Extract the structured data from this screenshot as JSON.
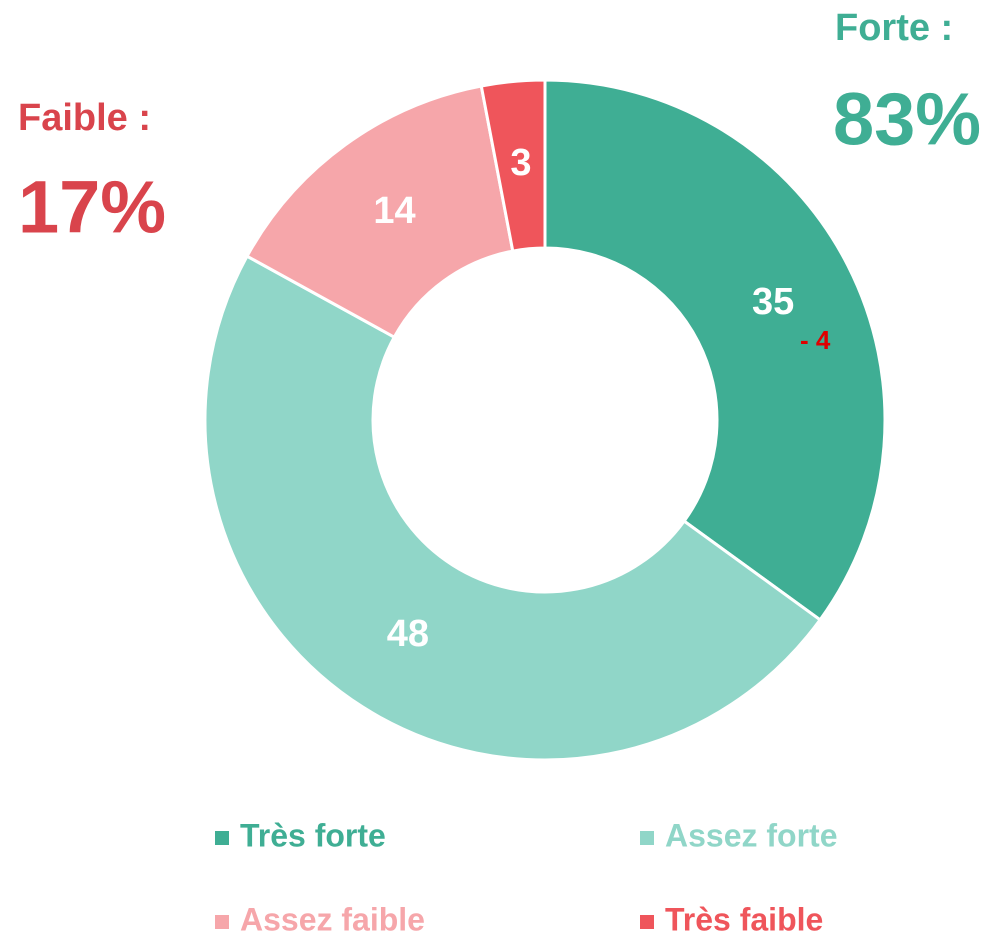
{
  "chart_data": {
    "type": "donut",
    "categories": [
      "Très forte",
      "Assez forte",
      "Assez faible",
      "Très faible"
    ],
    "values": [
      35,
      48,
      14,
      3
    ],
    "colors": [
      "#3fae94",
      "#90d6c8",
      "#f6a6aa",
      "#ef555b"
    ],
    "legend": "bottom",
    "annotations": [
      {
        "text": "Forte :",
        "color": "#3fae94"
      },
      {
        "text": "83%",
        "color": "#3fae94"
      },
      {
        "text": "Faible :",
        "color": "#d9444c"
      },
      {
        "text": "17%",
        "color": "#d9444c"
      },
      {
        "text": "- 4",
        "color": "#e00000"
      }
    ]
  }
}
